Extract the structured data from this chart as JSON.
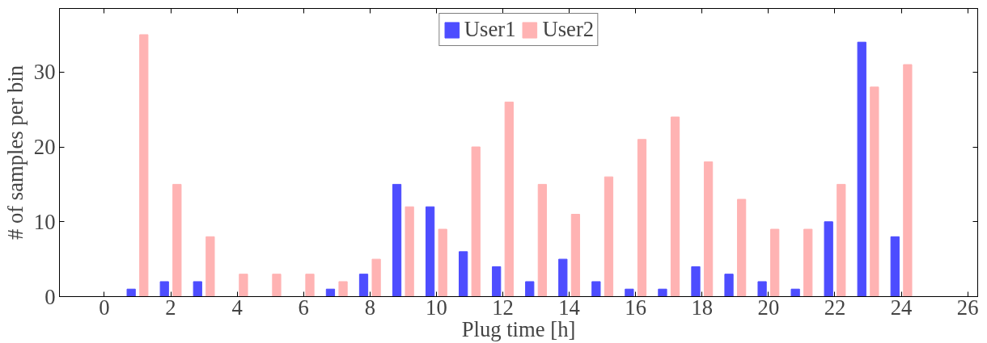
{
  "chart_data": {
    "type": "bar",
    "xlabel": "Plug time [h]",
    "ylabel": "# of samples per bin",
    "x": [
      1,
      2,
      3,
      4,
      5,
      6,
      7,
      8,
      9,
      10,
      11,
      12,
      13,
      14,
      15,
      16,
      17,
      18,
      19,
      20,
      21,
      22,
      23,
      24
    ],
    "series": [
      {
        "name": "User1",
        "color": "#4d4dff",
        "values": [
          1,
          2,
          2,
          0,
          0,
          0,
          1,
          3,
          15,
          12,
          6,
          4,
          2,
          5,
          2,
          1,
          1,
          4,
          3,
          2,
          1,
          10,
          34,
          8
        ]
      },
      {
        "name": "User2",
        "color": "#ffb3b3",
        "values": [
          35,
          15,
          8,
          3,
          3,
          3,
          2,
          5,
          12,
          9,
          20,
          26,
          15,
          11,
          16,
          21,
          24,
          18,
          13,
          9,
          9,
          15,
          28,
          31
        ]
      }
    ],
    "xlim": [
      -1.35,
      26.3
    ],
    "xticks": [
      0,
      2,
      4,
      6,
      8,
      10,
      12,
      14,
      16,
      18,
      20,
      22,
      24,
      26
    ],
    "ylim": [
      0,
      38.5
    ],
    "yticks": [
      0,
      10,
      20,
      30
    ],
    "grid": false,
    "legend": "top"
  }
}
